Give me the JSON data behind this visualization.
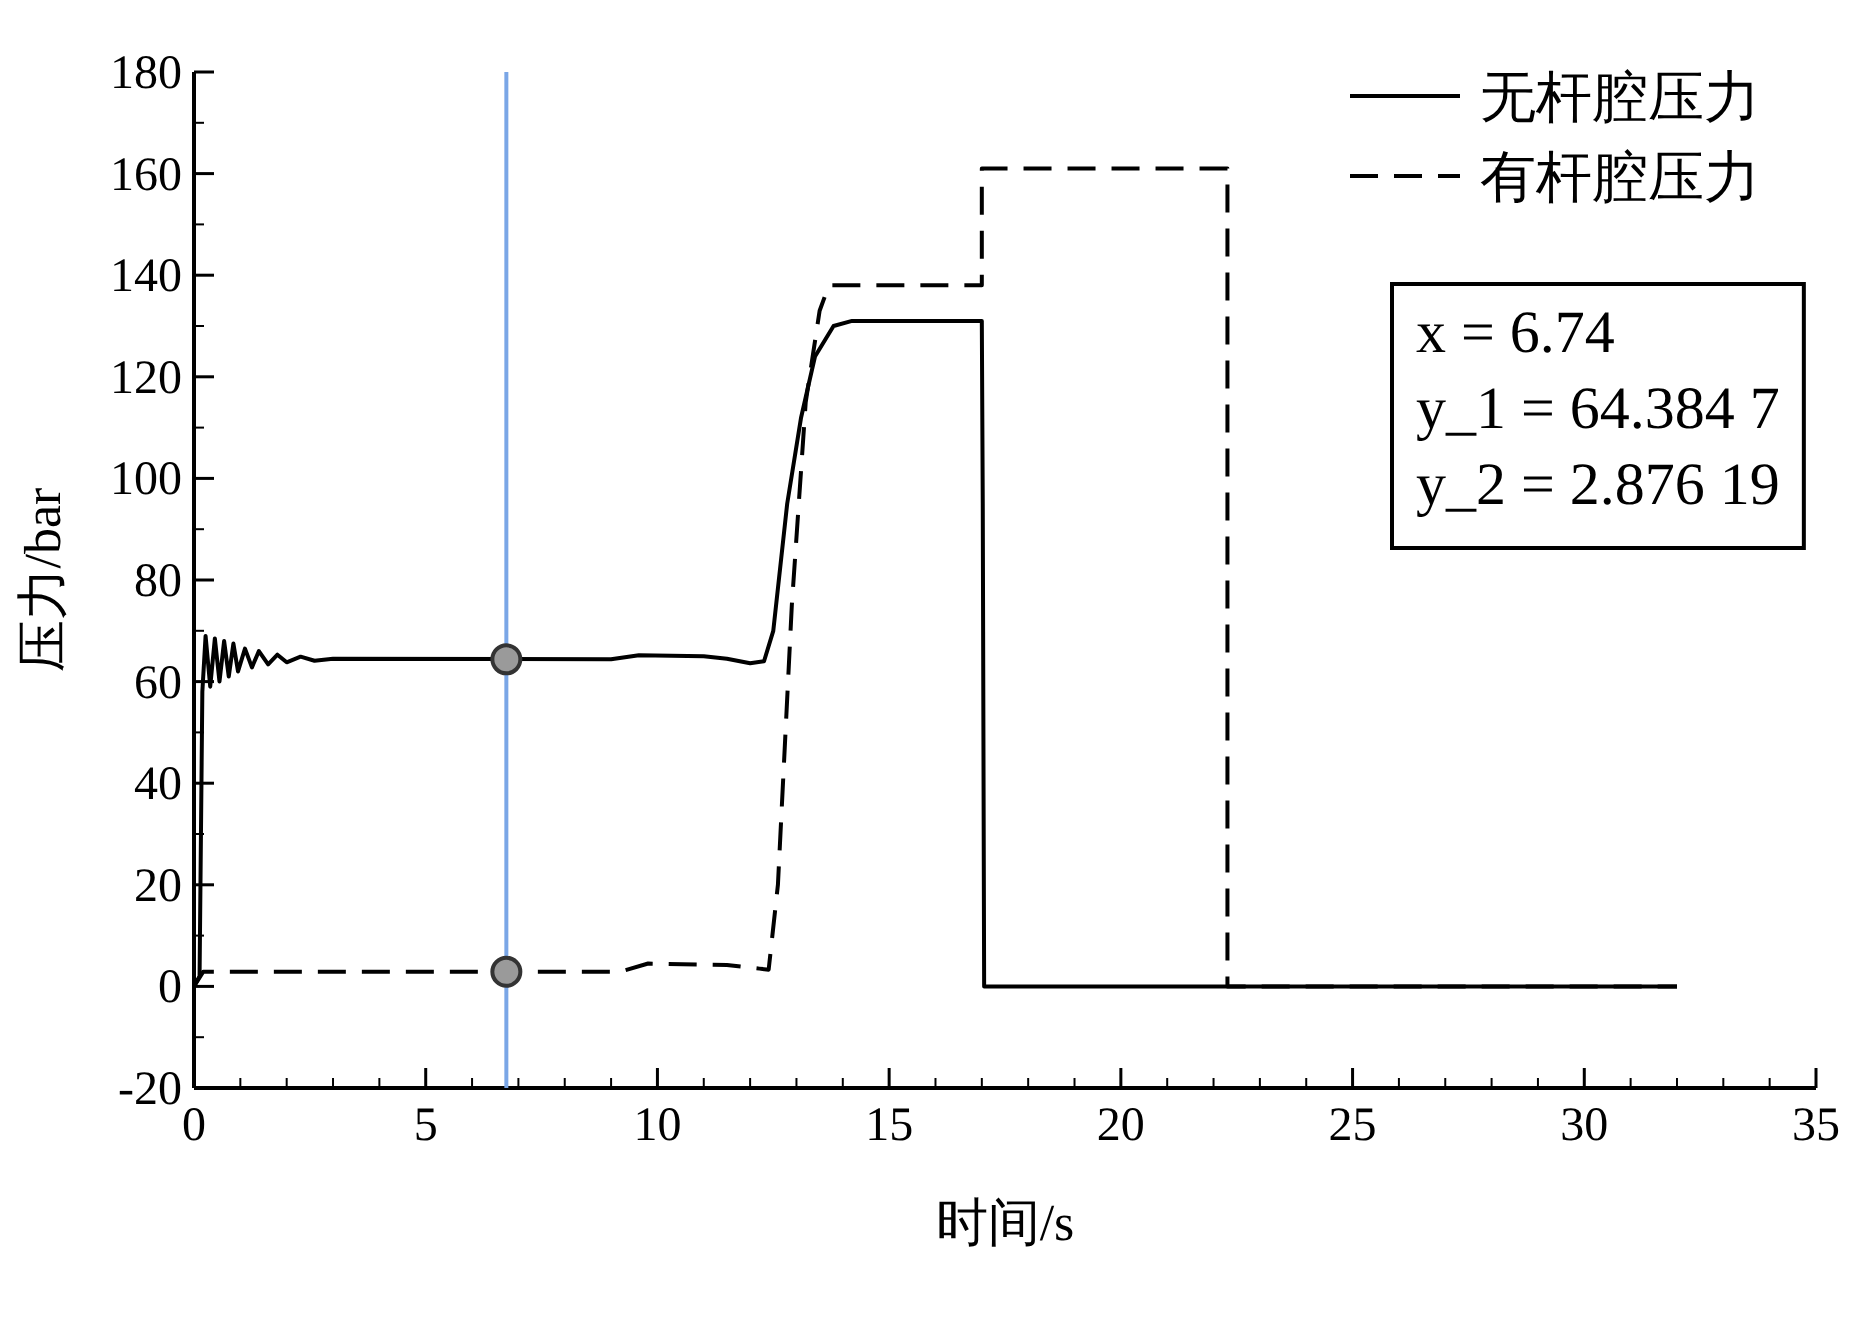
{
  "chart_data": {
    "type": "line",
    "xlabel": "时间/s",
    "ylabel": "压力/bar",
    "xlim": [
      0,
      35
    ],
    "xticks": [
      0,
      5,
      10,
      15,
      20,
      25,
      30,
      35
    ],
    "ylim": [
      -20,
      180
    ],
    "yticks": [
      -20,
      0,
      20,
      40,
      60,
      80,
      100,
      120,
      140,
      160,
      180
    ],
    "legend": "top right",
    "grid": false,
    "series": [
      {
        "name": "无杆腔压力",
        "color": "#000000",
        "line_style": "solid",
        "x": [
          0,
          0.12,
          0.18,
          0.25,
          0.35,
          0.45,
          0.55,
          0.65,
          0.75,
          0.85,
          0.95,
          1.1,
          1.25,
          1.4,
          1.6,
          1.8,
          2.0,
          2.3,
          2.6,
          3.0,
          9.0,
          9.6,
          11.0,
          11.5,
          12.0,
          12.3,
          12.5,
          12.8,
          13.1,
          13.4,
          13.8,
          14.2,
          17.0,
          17.02,
          17.05,
          32
        ],
        "values": [
          0,
          2,
          58,
          69,
          59,
          68.5,
          60,
          68,
          61,
          67.5,
          62,
          66.5,
          62.8,
          66,
          63.4,
          65.3,
          63.8,
          64.9,
          64.1,
          64.5,
          64.4,
          65.2,
          65,
          64.5,
          63.6,
          64,
          70,
          95,
          112,
          124,
          130,
          131,
          131,
          95,
          0,
          0
        ]
      },
      {
        "name": "有杆腔压力",
        "color": "#000000",
        "line_style": "dashed",
        "x": [
          0,
          0.2,
          9.2,
          9.8,
          11.5,
          12.2,
          12.4,
          12.6,
          12.9,
          13.2,
          13.5,
          13.7,
          17.0,
          17.0,
          22.3,
          22.3,
          32
        ],
        "values": [
          0,
          2.9,
          2.9,
          4.5,
          4.2,
          3.5,
          3.3,
          20,
          75,
          115,
          133,
          138,
          138,
          161,
          161,
          0,
          0
        ]
      },
      {
        "type": "scatter",
        "color": "#9a9a9a",
        "marker": "circle",
        "x": [
          6.74,
          6.74
        ],
        "values": [
          64.3847,
          2.87619
        ]
      }
    ],
    "ref_lines": [
      {
        "axis": "x",
        "value": 6.74,
        "color": "#7aa6e6"
      }
    ],
    "annotations": [
      "x = 6.74\ny_1 = 64.384 7\ny_2 = 2.876 19"
    ]
  }
}
